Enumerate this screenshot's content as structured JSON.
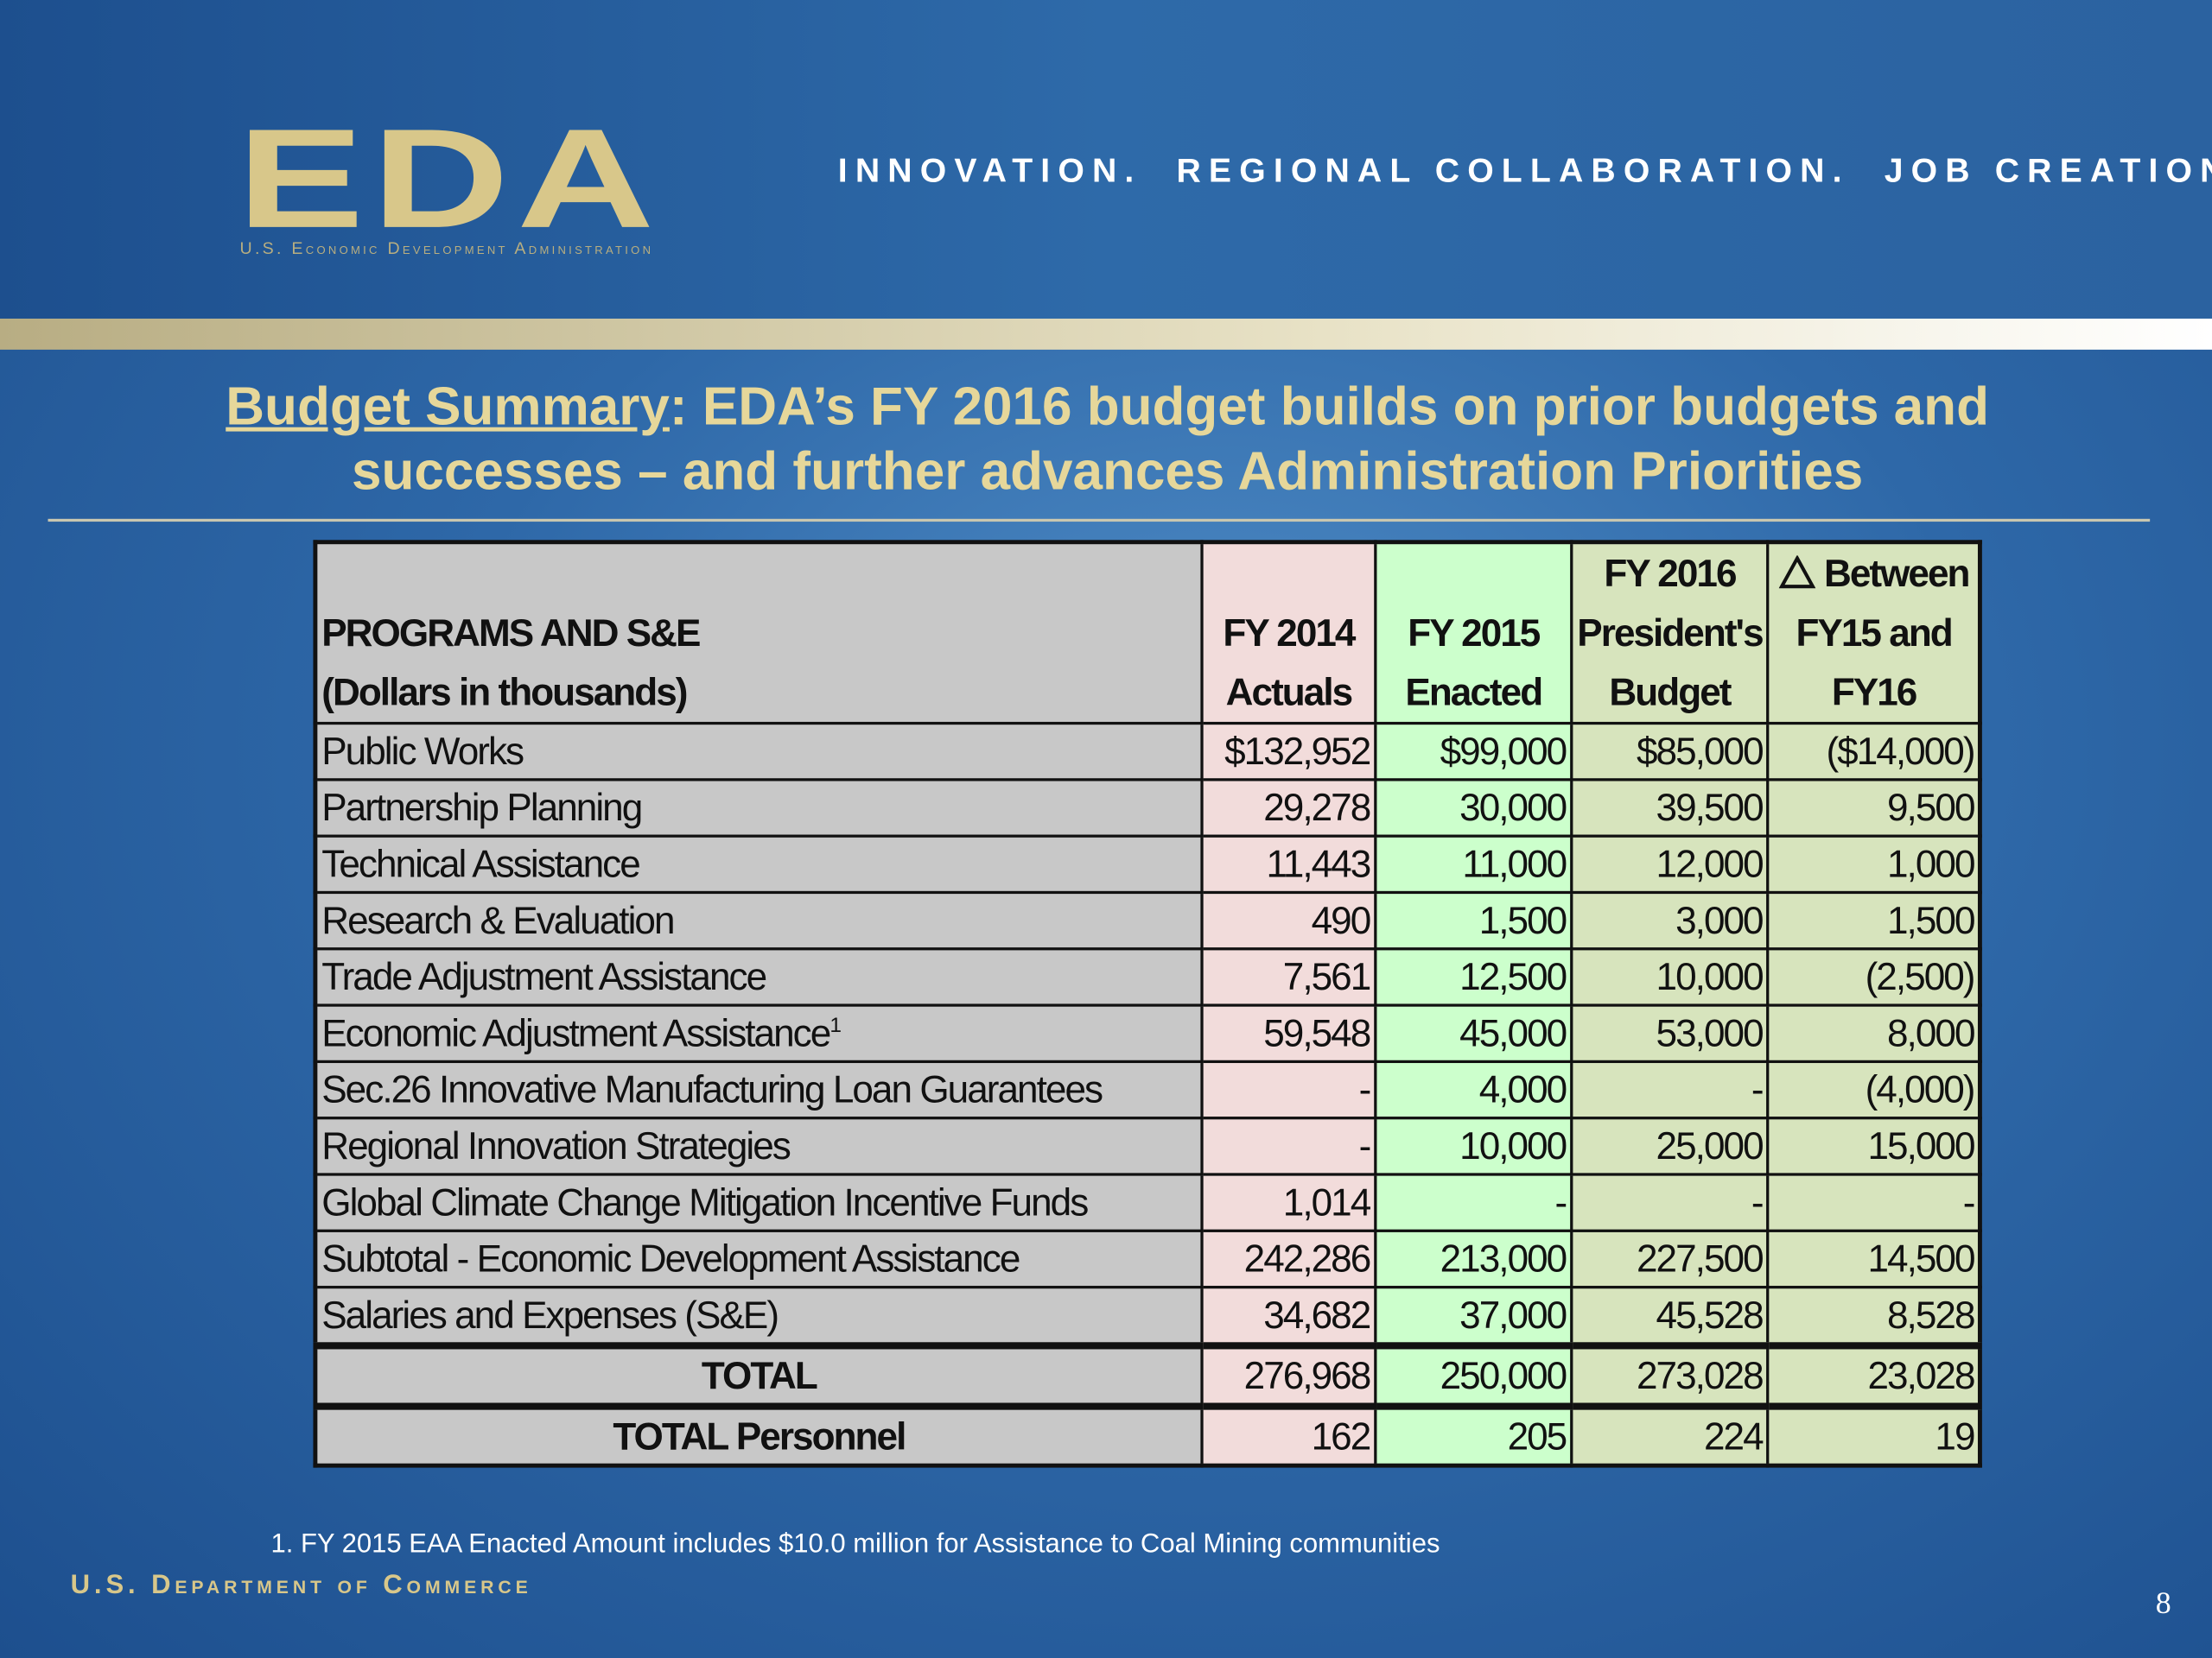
{
  "header": {
    "logo": "EDA",
    "logo_subtitle": "U.S. Economic Development Administration",
    "tagline": "INNOVATION.  REGIONAL COLLABORATION.  JOB CREATION."
  },
  "title": {
    "lead": "Budget Summary",
    "rest": ": EDA’s FY 2016 budget builds on prior budgets and successes – and further advances Administration Priorities"
  },
  "table": {
    "header": [
      {
        "lines": [
          "PROGRAMS AND S&E",
          "(Dollars in thousands)"
        ]
      },
      {
        "lines": [
          "FY 2014",
          "Actuals"
        ]
      },
      {
        "lines": [
          "FY 2015",
          "Enacted"
        ]
      },
      {
        "lines": [
          "FY 2016",
          "President's",
          "Budget"
        ]
      },
      {
        "lines": [
          "Between",
          "FY15 and",
          "FY16"
        ]
      }
    ],
    "rows": [
      {
        "label": "Public Works",
        "values": [
          "$132,952",
          "$99,000",
          "$85,000",
          "($14,000)"
        ]
      },
      {
        "label": "Partnership Planning",
        "values": [
          "29,278",
          "30,000",
          "39,500",
          "9,500"
        ]
      },
      {
        "label": "Technical Assistance",
        "values": [
          "11,443",
          "11,000",
          "12,000",
          "1,000"
        ]
      },
      {
        "label": "Research & Evaluation",
        "values": [
          "490",
          "1,500",
          "3,000",
          "1,500"
        ]
      },
      {
        "label": "Trade Adjustment Assistance",
        "values": [
          "7,561",
          "12,500",
          "10,000",
          "(2,500)"
        ]
      },
      {
        "label": "Economic Adjustment Assistance",
        "note": "1",
        "values": [
          "59,548",
          "45,000",
          "53,000",
          "8,000"
        ]
      },
      {
        "label": "Sec.26 Innovative Manufacturing Loan Guarantees",
        "values": [
          "-",
          "4,000",
          "-",
          "(4,000)"
        ]
      },
      {
        "label": "Regional Innovation Strategies",
        "values": [
          "-",
          "10,000",
          "25,000",
          "15,000"
        ]
      },
      {
        "label": "Global Climate Change Mitigation Incentive Funds",
        "values": [
          "1,014",
          "-",
          "-",
          "-"
        ]
      },
      {
        "label": "Subtotal - Economic Development Assistance",
        "values": [
          "242,286",
          "213,000",
          "227,500",
          "14,500"
        ]
      },
      {
        "label": "Salaries and Expenses (S&E)",
        "values": [
          "34,682",
          "37,000",
          "45,528",
          "8,528"
        ]
      },
      {
        "label": "TOTAL",
        "values": [
          "276,968",
          "250,000",
          "273,028",
          "23,028"
        ]
      },
      {
        "label": "TOTAL Personnel",
        "values": [
          "162",
          "205",
          "224",
          "19"
        ]
      }
    ]
  },
  "footnote": "1. FY 2015 EAA Enacted Amount includes $10.0 million for Assistance to Coal Mining communities",
  "footer": "U.S. Department of Commerce",
  "page_number": "8"
}
